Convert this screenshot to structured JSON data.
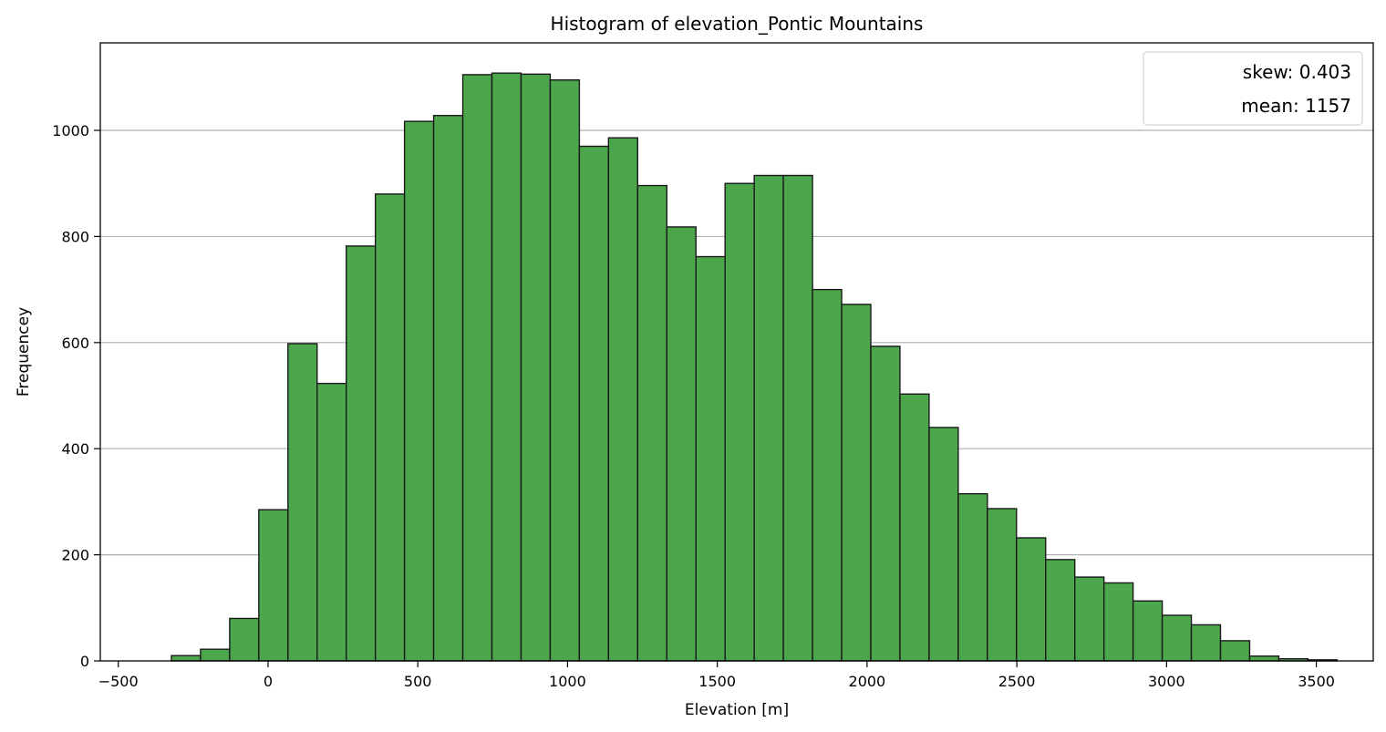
{
  "chart_data": {
    "type": "bar",
    "title": "Histogram of elevation_Pontic Mountains",
    "xlabel": "Elevation [m]",
    "ylabel": "Frequencey",
    "xlim": [
      -560,
      3690
    ],
    "ylim": [
      0,
      1165
    ],
    "bin_start": -420,
    "bin_width": 97.3,
    "values": [
      0,
      10,
      22,
      80,
      285,
      598,
      523,
      782,
      880,
      1017,
      1028,
      1105,
      1108,
      1106,
      1095,
      970,
      986,
      896,
      818,
      762,
      900,
      915,
      915,
      700,
      672,
      593,
      503,
      440,
      315,
      287,
      232,
      191,
      158,
      147,
      113,
      86,
      68,
      38,
      9,
      4,
      2
    ],
    "x_ticks": [
      -500,
      0,
      500,
      1000,
      1500,
      2000,
      2500,
      3000,
      3500
    ],
    "x_tick_labels": [
      "−500",
      "0",
      "500",
      "1000",
      "1500",
      "2000",
      "2500",
      "3000",
      "3500"
    ],
    "y_ticks": [
      0,
      200,
      400,
      600,
      800,
      1000
    ],
    "y_tick_labels": [
      "0",
      "200",
      "400",
      "600",
      "800",
      "1000"
    ],
    "grid": "y",
    "bar_color": "#4ca64c",
    "edge_color": "#1a1a1a",
    "legend_position": "top-right",
    "legend_entries": [
      "skew: 0.403",
      "mean: 1157"
    ]
  }
}
